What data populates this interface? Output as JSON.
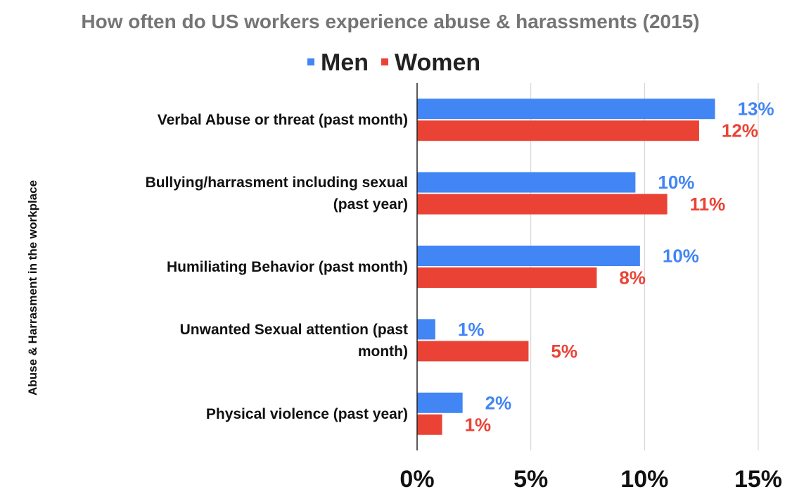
{
  "chart_data": {
    "type": "bar",
    "orientation": "horizontal",
    "title": "How often do US workers experience abuse & harassments (2015)",
    "ylabel": "Abuse & Harrasment in the workplace",
    "xlabel": "",
    "categories": [
      [
        "Verbal Abuse or threat (past month)"
      ],
      [
        "Bullying/harrasment including sexual",
        "(past year)"
      ],
      [
        "Humiliating Behavior (past month)"
      ],
      [
        "Unwanted Sexual attention (past",
        "month)"
      ],
      [
        "Physical violence (past year)"
      ]
    ],
    "series": [
      {
        "name": "Men",
        "color": "#4285f4",
        "values": [
          13.1,
          9.6,
          9.8,
          0.8,
          2.0
        ],
        "labels": [
          "13%",
          "10%",
          "10%",
          "1%",
          "2%"
        ]
      },
      {
        "name": "Women",
        "color": "#ea4335",
        "values": [
          12.4,
          11.0,
          7.9,
          4.9,
          1.1
        ],
        "labels": [
          "12%",
          "11%",
          "8%",
          "5%",
          "1%"
        ]
      }
    ],
    "xlim": [
      0,
      15
    ],
    "xticks": [
      0,
      5,
      10,
      15
    ],
    "xtick_labels": [
      "0%",
      "5%",
      "10%",
      "15%"
    ],
    "grid": true,
    "legend_position": "top"
  }
}
